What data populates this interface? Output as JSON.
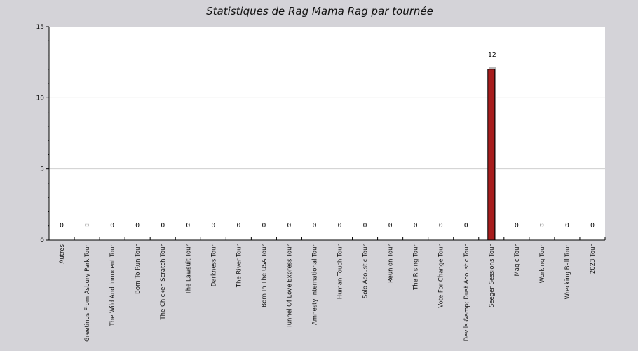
{
  "chart_data": {
    "type": "bar",
    "title": "Statistiques de Rag Mama Rag par tournée",
    "xlabel": "",
    "ylabel": "",
    "ylim": [
      0,
      15
    ],
    "yticks": [
      0,
      5,
      10,
      15
    ],
    "grid": true,
    "bar_color": "#a71d1d",
    "categories": [
      "Autres",
      "Greetings From Asbury Park Tour",
      "The Wild And Innocent Tour",
      "Born To Run Tour",
      "The Chicken Scratch Tour",
      "The Lawsuit Tour",
      "Darkness Tour",
      "The River Tour",
      "Born In The USA Tour",
      "Tunnel Of Love Express Tour",
      "Amnesty International Tour",
      "Human Touch Tour",
      "Solo Acoustic Tour",
      "Reunion Tour",
      "The Rising Tour",
      "Vote For Change Tour",
      "Devils &amp; Dust Acoustic Tour",
      "Seeger Sessions Tour",
      "Magic Tour",
      "Working Tour",
      "Wrecking Ball Tour",
      "2023 Tour"
    ],
    "values": [
      0,
      0,
      0,
      0,
      0,
      0,
      0,
      0,
      0,
      0,
      0,
      0,
      0,
      0,
      0,
      0,
      0,
      12,
      0,
      0,
      0,
      0
    ]
  }
}
